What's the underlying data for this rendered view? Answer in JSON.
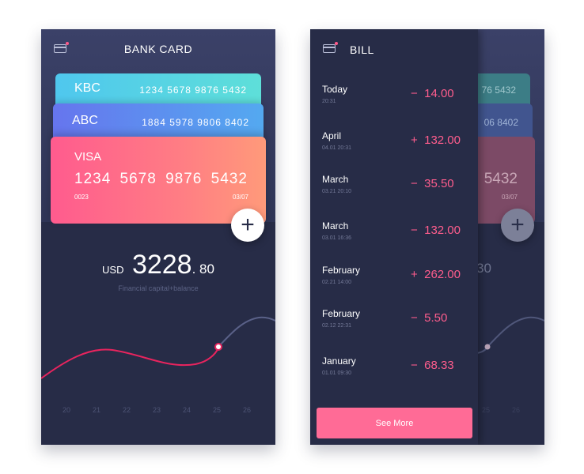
{
  "bank_screen": {
    "title": "BANK CARD",
    "cards": [
      {
        "name": "KBC",
        "number": "1234 5678 9876 5432"
      },
      {
        "name": "ABC",
        "number": "1884 5978 9806 8402"
      },
      {
        "name": "VISA",
        "number": "1234 5678 9876 5432",
        "code": "0023",
        "expiry": "03/07"
      }
    ],
    "balance": {
      "currency": "USD",
      "integer": "3228",
      "decimal": ". 80",
      "caption": "Financial capital+balance"
    },
    "days": [
      "20",
      "21",
      "22",
      "23",
      "24",
      "25",
      "26"
    ]
  },
  "bill_screen": {
    "title": "BILL",
    "items": [
      {
        "month": "Today",
        "date": "20:31",
        "sign": "−",
        "amount": "14.00"
      },
      {
        "month": "April",
        "date": "04.01   20:31",
        "sign": "+",
        "amount": "132.00"
      },
      {
        "month": "March",
        "date": "03.21   20:10",
        "sign": "−",
        "amount": "35.50"
      },
      {
        "month": "March",
        "date": "03.01   16:36",
        "sign": "−",
        "amount": "132.00"
      },
      {
        "month": "February",
        "date": "02.21   14:00",
        "sign": "+",
        "amount": "262.00"
      },
      {
        "month": "February",
        "date": "02.12   22:31",
        "sign": "−",
        "amount": "5.50"
      },
      {
        "month": "January",
        "date": "01.01   09:30",
        "sign": "−",
        "amount": "68.33"
      }
    ],
    "see_more": "See More",
    "behind": {
      "num1": "76  5432",
      "num2": "06  8402",
      "num3": "5432",
      "num4": "03/07",
      "balance_frag": "30",
      "days": [
        "25",
        "26"
      ]
    }
  },
  "icons": {
    "card": "card-icon",
    "add": "plus-icon"
  },
  "colors": {
    "background": "#272c47",
    "accent": "#ff5d8d",
    "button": "#ff6b96"
  }
}
